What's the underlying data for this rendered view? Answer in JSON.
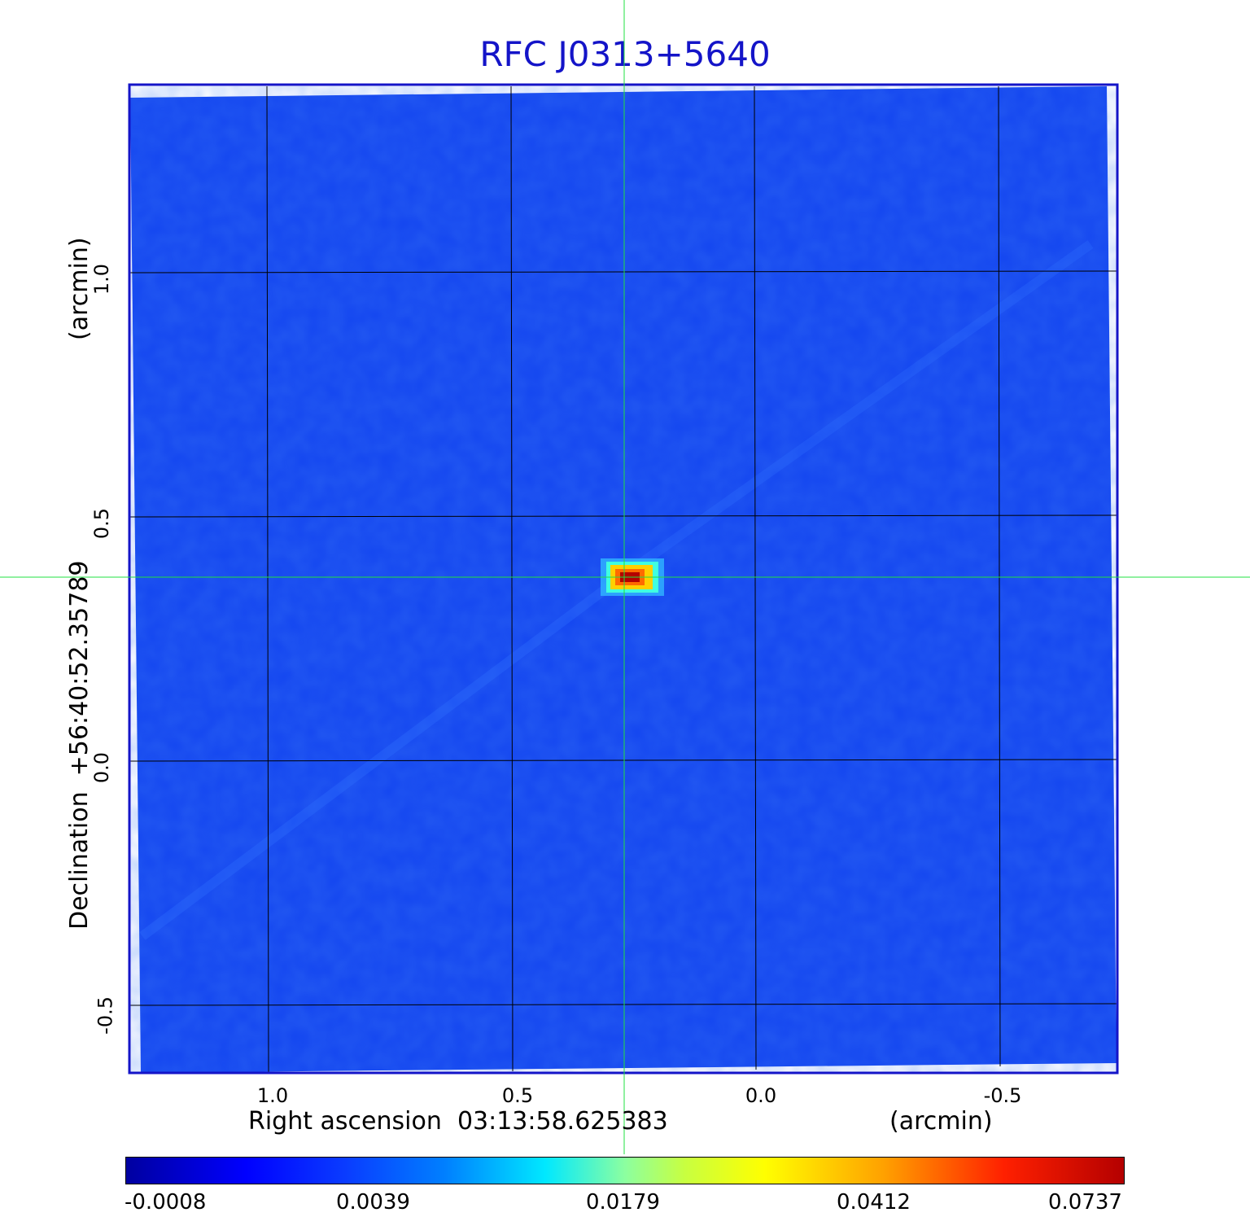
{
  "title": "RFC J0313+5640",
  "x_axis": {
    "label_prefix": "Right ascension",
    "label_value": "03:13:58.625383",
    "unit": "(arcmin)",
    "ticks": [
      "1.0",
      "0.5",
      "0.0",
      "-0.5"
    ]
  },
  "y_axis": {
    "label_prefix": "Declination",
    "label_value": "+56:40:52.35789",
    "unit": "(arcmin)",
    "ticks": [
      "1.0",
      "0.5",
      "0.0",
      "-0.5"
    ]
  },
  "colorbar": {
    "ticks": [
      "-0.0008",
      "0.0039",
      "0.0179",
      "0.0412",
      "0.0737"
    ]
  },
  "colors": {
    "title": "#1414c8",
    "frame": "#1414c8",
    "background_map": "#1446f0",
    "crosshair": "#20e040",
    "grid": "#000000"
  }
}
